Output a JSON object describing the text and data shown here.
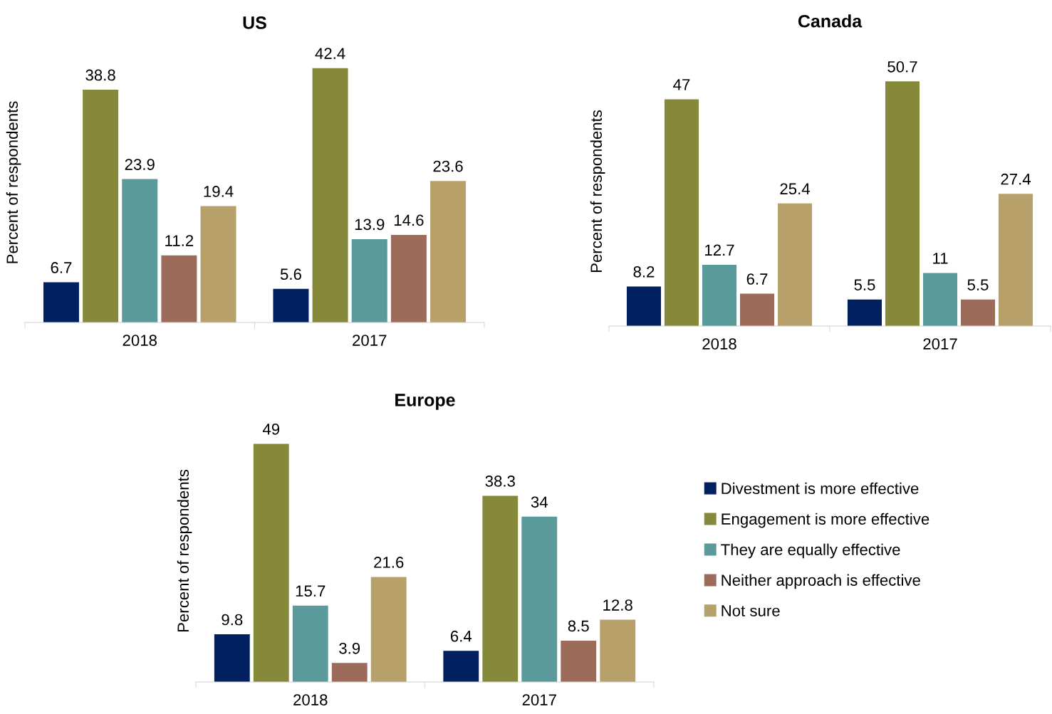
{
  "chart_data": [
    {
      "type": "bar",
      "title": "US",
      "ylabel": "Percent of respondents",
      "categories": [
        "2018",
        "2017"
      ],
      "data_labels": true,
      "legend": false,
      "grid": false,
      "series": [
        {
          "color": "#002060",
          "values": [
            6.7,
            5.6
          ]
        },
        {
          "color": "#86893a",
          "values": [
            38.8,
            42.4
          ]
        },
        {
          "color": "#5b9a9b",
          "values": [
            23.9,
            13.9
          ]
        },
        {
          "color": "#9c6b5a",
          "values": [
            11.2,
            14.6
          ]
        },
        {
          "color": "#b7a06a",
          "values": [
            19.4,
            23.6
          ]
        }
      ]
    },
    {
      "type": "bar",
      "title": "Canada",
      "ylabel": "Percent of respondents",
      "categories": [
        "2018",
        "2017"
      ],
      "data_labels": true,
      "legend": false,
      "grid": false,
      "series": [
        {
          "color": "#002060",
          "values": [
            8.2,
            5.5
          ]
        },
        {
          "color": "#86893a",
          "values": [
            47,
            50.7
          ]
        },
        {
          "color": "#5b9a9b",
          "values": [
            12.7,
            11
          ]
        },
        {
          "color": "#9c6b5a",
          "values": [
            6.7,
            5.5
          ]
        },
        {
          "color": "#b7a06a",
          "values": [
            25.4,
            27.4
          ]
        }
      ]
    },
    {
      "type": "bar",
      "title": "Europe",
      "ylabel": "Percent of respondents",
      "categories": [
        "2018",
        "2017"
      ],
      "data_labels": true,
      "legend": "right",
      "grid": false,
      "series": [
        {
          "name": "Divestment is more effective",
          "color": "#002060",
          "values": [
            9.8,
            6.4
          ]
        },
        {
          "name": "Engagement is more effective",
          "color": "#86893a",
          "values": [
            49,
            38.3
          ]
        },
        {
          "name": "They are equally effective",
          "color": "#5b9a9b",
          "values": [
            15.7,
            34
          ]
        },
        {
          "name": "Neither approach is effective",
          "color": "#9c6b5a",
          "values": [
            3.9,
            8.5
          ]
        },
        {
          "name": "Not sure",
          "color": "#b7a06a",
          "values": [
            21.6,
            12.8
          ]
        }
      ]
    }
  ]
}
